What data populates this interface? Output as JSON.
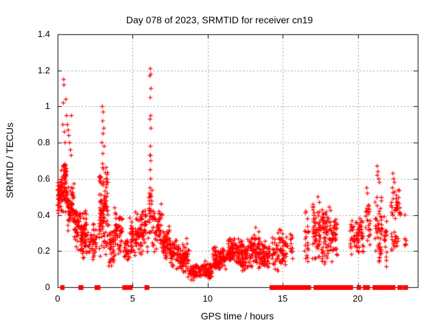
{
  "title": "Day 078 of 2023, SRMTID for receiver cn19",
  "colors": {
    "marker": "#ff0000",
    "grid": "#999999",
    "axis": "#000000",
    "background": "#ffffff",
    "text": "#000000"
  },
  "chart_data": {
    "type": "scatter",
    "marker": "plus",
    "series_name": "SRMTID",
    "series_color": "#ff0000",
    "title": "Day 078 of 2023, SRMTID for receiver cn19",
    "xlabel": "GPS time / hours",
    "ylabel": "SRMTID / TECUs",
    "xlim": [
      0,
      24
    ],
    "ylim": [
      0,
      1.4
    ],
    "grid": true,
    "grid_style": "dashed",
    "x_ticks": [
      0,
      5,
      10,
      15,
      20
    ],
    "x_tick_labels": [
      "0",
      "5",
      "10",
      "15",
      "20"
    ],
    "y_ticks": [
      0,
      0.2,
      0.4,
      0.6,
      0.8,
      1.0,
      1.2,
      1.4
    ],
    "y_tick_labels": [
      "0",
      "0.2",
      "0.4",
      "0.6",
      "0.8",
      "1",
      "1.2",
      "1.4"
    ],
    "clusters": [
      {
        "t0": 0.0,
        "t1": 0.15,
        "ylo": 0.38,
        "yhi": 0.62,
        "n": 28
      },
      {
        "t0": 0.15,
        "t1": 0.65,
        "ylo": 0.4,
        "yhi": 0.66,
        "n": 70
      },
      {
        "t0": 0.3,
        "t1": 0.6,
        "ylo": 0.55,
        "yhi": 0.72,
        "n": 18
      },
      {
        "t0": 0.65,
        "t1": 1.1,
        "ylo": 0.3,
        "yhi": 0.58,
        "n": 60
      },
      {
        "t0": 1.1,
        "t1": 1.45,
        "ylo": 0.2,
        "yhi": 0.47,
        "n": 45
      },
      {
        "t0": 1.5,
        "t1": 1.95,
        "ylo": 0.13,
        "yhi": 0.45,
        "n": 70
      },
      {
        "t0": 2.0,
        "t1": 2.3,
        "ylo": 0.15,
        "yhi": 0.33,
        "n": 18
      },
      {
        "t0": 2.3,
        "t1": 2.65,
        "ylo": 0.1,
        "yhi": 0.36,
        "n": 28
      },
      {
        "t0": 2.75,
        "t1": 3.35,
        "ylo": 0.15,
        "yhi": 0.72,
        "n": 110
      },
      {
        "t0": 3.4,
        "t1": 3.75,
        "ylo": 0.08,
        "yhi": 0.38,
        "n": 38
      },
      {
        "t0": 3.8,
        "t1": 4.3,
        "ylo": 0.15,
        "yhi": 0.48,
        "n": 55
      },
      {
        "t0": 4.35,
        "t1": 4.75,
        "ylo": 0.1,
        "yhi": 0.32,
        "n": 26
      },
      {
        "t0": 4.8,
        "t1": 5.6,
        "ylo": 0.15,
        "yhi": 0.42,
        "n": 80
      },
      {
        "t0": 5.6,
        "t1": 6.05,
        "ylo": 0.18,
        "yhi": 0.45,
        "n": 35
      },
      {
        "t0": 6.08,
        "t1": 6.3,
        "ylo": 0.2,
        "yhi": 0.6,
        "n": 25
      },
      {
        "t0": 6.3,
        "t1": 7.0,
        "ylo": 0.18,
        "yhi": 0.48,
        "n": 60
      },
      {
        "t0": 7.0,
        "t1": 7.5,
        "ylo": 0.13,
        "yhi": 0.35,
        "n": 50
      },
      {
        "t0": 7.5,
        "t1": 8.2,
        "ylo": 0.09,
        "yhi": 0.28,
        "n": 60
      },
      {
        "t0": 8.2,
        "t1": 8.8,
        "ylo": 0.05,
        "yhi": 0.24,
        "n": 55
      },
      {
        "t0": 8.8,
        "t1": 9.6,
        "ylo": 0.03,
        "yhi": 0.13,
        "n": 70
      },
      {
        "t0": 9.6,
        "t1": 10.3,
        "ylo": 0.04,
        "yhi": 0.15,
        "n": 65
      },
      {
        "t0": 10.3,
        "t1": 10.6,
        "ylo": 0.08,
        "yhi": 0.26,
        "n": 25
      },
      {
        "t0": 10.6,
        "t1": 11.3,
        "ylo": 0.09,
        "yhi": 0.22,
        "n": 70
      },
      {
        "t0": 11.3,
        "t1": 12.1,
        "ylo": 0.1,
        "yhi": 0.28,
        "n": 85
      },
      {
        "t0": 12.1,
        "t1": 12.9,
        "ylo": 0.08,
        "yhi": 0.28,
        "n": 85
      },
      {
        "t0": 12.9,
        "t1": 13.5,
        "ylo": 0.09,
        "yhi": 0.32,
        "n": 60
      },
      {
        "t0": 13.5,
        "t1": 14.15,
        "ylo": 0.08,
        "yhi": 0.26,
        "n": 55
      },
      {
        "t0": 14.3,
        "t1": 15.0,
        "ylo": 0.08,
        "yhi": 0.33,
        "n": 55
      },
      {
        "t0": 15.0,
        "t1": 15.35,
        "ylo": 0.1,
        "yhi": 0.3,
        "n": 22
      },
      {
        "t0": 15.5,
        "t1": 15.68,
        "ylo": 0.14,
        "yhi": 0.34,
        "n": 15
      },
      {
        "t0": 16.45,
        "t1": 16.75,
        "ylo": 0.12,
        "yhi": 0.42,
        "n": 20
      },
      {
        "t0": 17.0,
        "t1": 18.2,
        "ylo": 0.1,
        "yhi": 0.47,
        "n": 130
      },
      {
        "t0": 18.2,
        "t1": 18.65,
        "ylo": 0.13,
        "yhi": 0.4,
        "n": 40
      },
      {
        "t0": 19.5,
        "t1": 20.4,
        "ylo": 0.16,
        "yhi": 0.42,
        "n": 70
      },
      {
        "t0": 20.5,
        "t1": 20.85,
        "ylo": 0.22,
        "yhi": 0.5,
        "n": 25
      },
      {
        "t0": 21.15,
        "t1": 21.65,
        "ylo": 0.1,
        "yhi": 0.58,
        "n": 50
      },
      {
        "t0": 21.75,
        "t1": 21.95,
        "ylo": 0.1,
        "yhi": 0.45,
        "n": 18
      },
      {
        "t0": 22.2,
        "t1": 22.85,
        "ylo": 0.36,
        "yhi": 0.56,
        "n": 35
      },
      {
        "t0": 22.25,
        "t1": 22.7,
        "ylo": 0.18,
        "yhi": 0.35,
        "n": 20
      },
      {
        "t0": 23.1,
        "t1": 23.25,
        "ylo": 0.2,
        "yhi": 0.34,
        "n": 6
      }
    ],
    "outlier_points": [
      [
        0.35,
        0.9
      ],
      [
        0.38,
        1.02
      ],
      [
        0.4,
        1.15
      ],
      [
        0.42,
        1.12
      ],
      [
        0.45,
        0.86
      ],
      [
        0.5,
        0.8
      ],
      [
        0.55,
        1.04
      ],
      [
        0.6,
        0.95
      ],
      [
        0.65,
        0.9
      ],
      [
        0.7,
        0.87
      ],
      [
        0.75,
        0.84
      ],
      [
        0.8,
        0.8
      ],
      [
        0.85,
        0.76
      ],
      [
        0.9,
        0.73
      ],
      [
        0.92,
        0.95
      ],
      [
        2.98,
        1.0
      ],
      [
        3.04,
        0.97
      ],
      [
        3.0,
        0.92
      ],
      [
        3.08,
        0.88
      ],
      [
        3.03,
        0.85
      ],
      [
        2.95,
        0.8
      ],
      [
        3.1,
        0.78
      ],
      [
        3.01,
        0.74
      ],
      [
        6.18,
        1.21
      ],
      [
        6.21,
        1.18
      ],
      [
        6.15,
        1.17
      ],
      [
        6.22,
        1.1
      ],
      [
        6.18,
        1.05
      ],
      [
        6.2,
        0.95
      ],
      [
        6.16,
        0.93
      ],
      [
        6.22,
        0.88
      ],
      [
        6.19,
        0.78
      ],
      [
        6.15,
        0.73
      ],
      [
        6.2,
        0.73
      ],
      [
        6.21,
        0.7
      ],
      [
        6.18,
        0.65
      ],
      [
        6.2,
        0.6
      ],
      [
        6.16,
        0.55
      ],
      [
        6.23,
        0.5
      ],
      [
        8.6,
        0.27
      ],
      [
        8.63,
        0.24
      ],
      [
        13.2,
        0.33
      ],
      [
        16.55,
        0.42
      ],
      [
        17.35,
        0.5
      ],
      [
        17.45,
        0.47
      ],
      [
        20.6,
        0.55
      ],
      [
        20.65,
        0.52
      ],
      [
        21.3,
        0.67
      ],
      [
        21.35,
        0.64
      ],
      [
        21.3,
        0.62
      ],
      [
        21.4,
        0.6
      ],
      [
        21.45,
        0.58
      ],
      [
        22.35,
        0.63
      ],
      [
        22.4,
        0.6
      ],
      [
        22.45,
        0.58
      ],
      [
        23.15,
        0.4
      ]
    ],
    "zero_segments": [
      [
        0.27,
        0.37
      ],
      [
        1.48,
        1.53
      ],
      [
        1.58,
        1.63
      ],
      [
        2.56,
        2.62
      ],
      [
        2.7,
        2.76
      ],
      [
        4.4,
        4.52
      ],
      [
        4.56,
        4.68
      ],
      [
        4.82,
        4.9
      ],
      [
        5.88,
        6.02
      ],
      [
        14.22,
        14.5
      ],
      [
        14.56,
        15.35
      ],
      [
        15.5,
        15.64
      ],
      [
        15.76,
        16.8
      ],
      [
        17.15,
        18.3
      ],
      [
        18.45,
        19.6
      ],
      [
        20.02,
        20.14
      ],
      [
        20.44,
        20.56
      ],
      [
        20.62,
        20.72
      ],
      [
        21.08,
        21.18
      ],
      [
        21.34,
        22.42
      ],
      [
        22.74,
        22.92
      ],
      [
        23.12,
        23.26
      ]
    ]
  }
}
